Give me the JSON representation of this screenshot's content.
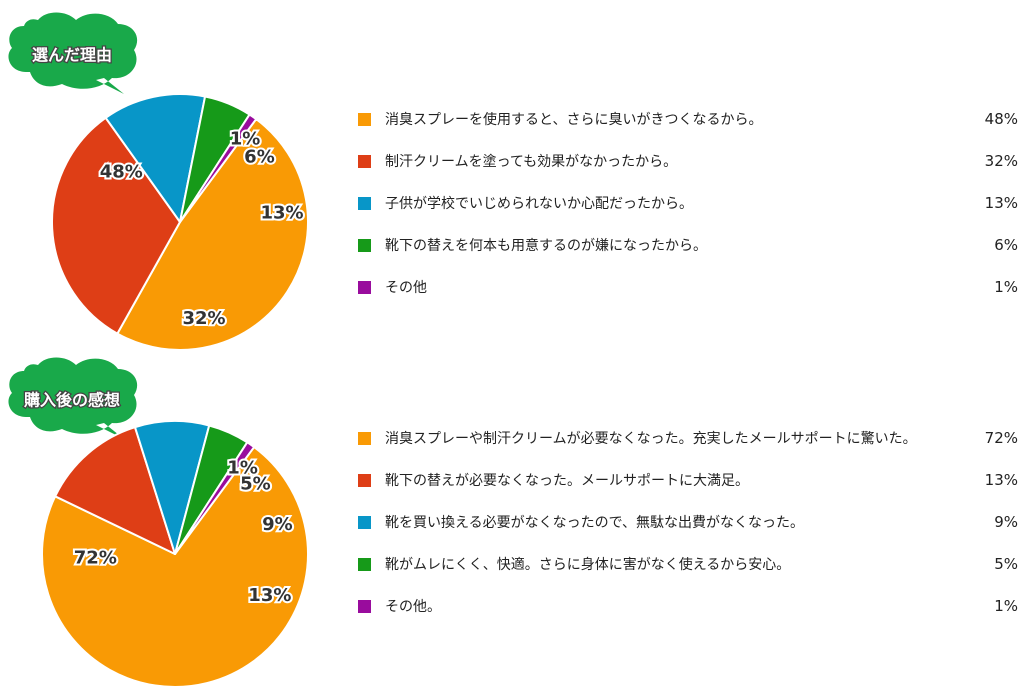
{
  "chart_data": [
    {
      "type": "pie",
      "title": "選んだ理由",
      "categories": [
        "消臭スプレーを使用すると、さらに臭いがきつくなるから。",
        "制汗クリームを塗っても効果がなかったから。",
        "子供が学校でいじめられないか心配だったから。",
        "靴下の替えを何本も用意するのが嫌になったから。",
        "その他"
      ],
      "values": [
        48,
        32,
        13,
        6,
        1
      ],
      "labels": [
        "48%",
        "32%",
        "13%",
        "6%",
        "1%"
      ],
      "colors": [
        "#f99a05",
        "#de3e16",
        "#0896c8",
        "#169a19",
        "#990c9d"
      ],
      "legend": "right"
    },
    {
      "type": "pie",
      "title": "購入後の感想",
      "categories": [
        "消臭スプレーや制汗クリームが必要なくなった。充実したメールサポートに驚いた。",
        "靴下の替えが必要なくなった。メールサポートに大満足。",
        "靴を買い換える必要がなくなったので、無駄な出費がなくなった。",
        "靴がムレにくく、快適。さらに身体に害がなく使えるから安心。",
        "その他。"
      ],
      "values": [
        72,
        13,
        9,
        5,
        1
      ],
      "labels": [
        "72%",
        "13%",
        "9%",
        "5%",
        "1%"
      ],
      "colors": [
        "#f99a05",
        "#de3e16",
        "#0896c8",
        "#169a19",
        "#990c9d"
      ],
      "legend": "right"
    }
  ],
  "colors": {
    "bubble": "#19a94a"
  }
}
